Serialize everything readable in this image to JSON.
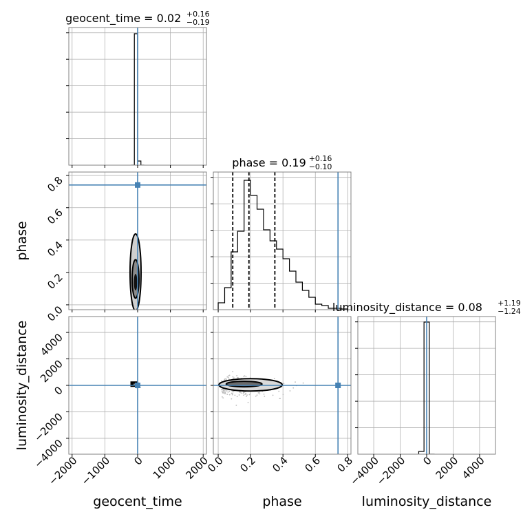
{
  "chart_data": {
    "type": "corner",
    "parameters": [
      "geocent_time",
      "phase",
      "luminosity_distance"
    ],
    "axis_labels": {
      "geocent_time": "geocent_time",
      "phase": "phase",
      "luminosity_distance": "luminosity_distance"
    },
    "titles": [
      {
        "param": "geocent_time",
        "name": "geocent_time",
        "median": "0.02",
        "plus": "+0.16",
        "minus": "−0.19"
      },
      {
        "param": "phase",
        "name": "phase",
        "median": "0.19",
        "plus": "+0.16",
        "minus": "−0.10"
      },
      {
        "param": "luminosity_distance",
        "name": "luminosity_distance",
        "median": "0.08",
        "plus": "+1.19",
        "minus": "−1.24"
      }
    ],
    "ranges": {
      "geocent_time": [
        -2100,
        2100
      ],
      "phase": [
        -0.03,
        0.82
      ],
      "luminosity_distance": [
        -5200,
        5200
      ]
    },
    "ticks": {
      "geocent_time": [
        -2000,
        -1000,
        0,
        1000,
        2000
      ],
      "phase": [
        0.0,
        0.2,
        0.4,
        0.6,
        0.8
      ],
      "luminosity_distance_y": [
        -4000,
        -2000,
        0,
        2000,
        4000
      ],
      "luminosity_distance_x": [
        -4000,
        -2000,
        0,
        2000,
        4000
      ]
    },
    "tick_labels": {
      "geocent_time": [
        "−2000",
        "−1000",
        "0",
        "1000",
        "2000"
      ],
      "phase": [
        "0.0",
        "0.2",
        "0.4",
        "0.6",
        "0.8"
      ],
      "luminosity_distance": [
        "−4000",
        "−2000",
        "0",
        "2000",
        "4000"
      ]
    },
    "truths": {
      "geocent_time": 0,
      "phase": 0.74,
      "luminosity_distance": 0
    },
    "quantiles": {
      "phase": [
        0.09,
        0.19,
        0.35
      ]
    },
    "histograms": {
      "geocent_time": {
        "bin_edges": [
          -200,
          -100,
          0,
          100,
          200
        ],
        "counts": [
          0,
          0.955,
          0.03,
          0
        ]
      },
      "phase": {
        "bin_edges": [
          0.0,
          0.04,
          0.08,
          0.12,
          0.16,
          0.2,
          0.24,
          0.28,
          0.32,
          0.36,
          0.4,
          0.44,
          0.48,
          0.52,
          0.56,
          0.6,
          0.64,
          0.68,
          0.72,
          0.76,
          0.8
        ],
        "counts": [
          0.05,
          0.16,
          0.42,
          0.57,
          0.94,
          0.83,
          0.73,
          0.58,
          0.5,
          0.44,
          0.37,
          0.28,
          0.2,
          0.14,
          0.09,
          0.04,
          0.03,
          0.01,
          0.01,
          0.005
        ]
      },
      "luminosity_distance": {
        "bin_edges": [
          -600,
          -200,
          200,
          600
        ],
        "counts": [
          0.02,
          0.96,
          0.0
        ]
      }
    },
    "grid": true
  }
}
